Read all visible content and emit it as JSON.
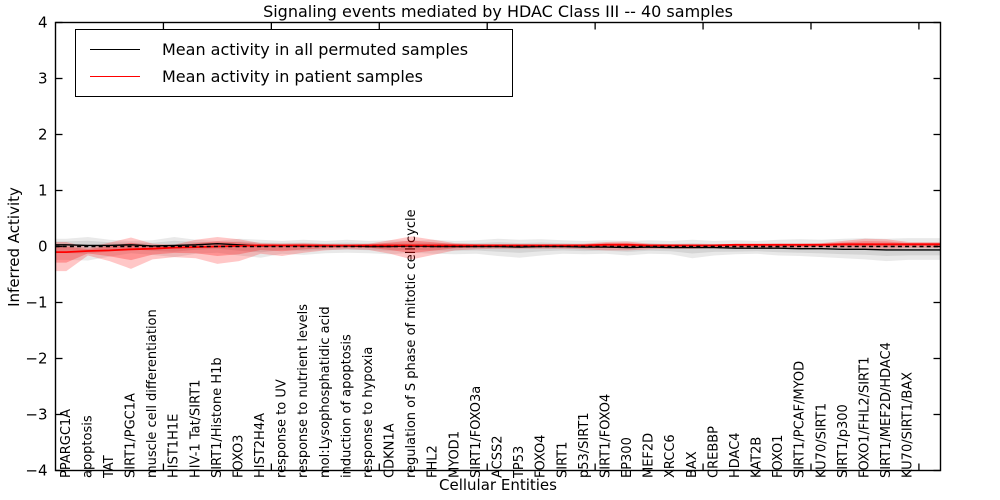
{
  "title": "Signaling events mediated by HDAC Class III -- 40 samples",
  "legend": {
    "entries": [
      {
        "label": "Mean activity in all permuted samples",
        "color": "#000000"
      },
      {
        "label": "Mean activity in patient samples",
        "color": "#ff0000"
      }
    ],
    "position": "upper left"
  },
  "colors": {
    "permuted_line": "#000000",
    "patient_line": "#ff0000",
    "permuted_band": "#000000",
    "patient_band": "#ff0000",
    "zero_line": "#000000",
    "frame": "#000000",
    "background": "#ffffff"
  },
  "chart_data": {
    "type": "line",
    "title": "Signaling events mediated by HDAC Class III -- 40 samples",
    "xlabel": "Cellular Entities",
    "ylabel": "Inferred Activity",
    "ylim": [
      -4,
      4
    ],
    "yticks": [
      -4,
      -3,
      -2,
      -1,
      0,
      1,
      2,
      3,
      4
    ],
    "xticks_every": 5,
    "grid": false,
    "legend_position": "upper left",
    "zero_line": {
      "y": 0,
      "style": "dashed",
      "color": "#000000"
    },
    "categories": [
      "PPARGC1A",
      "apoptosis",
      "TAT",
      "SIRT1/PGC1A",
      "muscle cell differentiation",
      "HIST1H1E",
      "HIV-1 Tat/SIRT1",
      "SIRT1/Histone H1b",
      "FOXO3",
      "HIST2H4A",
      "response to UV",
      "response to nutrient levels",
      "mol:Lysophosphatidic acid",
      "induction of apoptosis",
      "response to hypoxia",
      "CDKN1A",
      "regulation of S phase of mitotic cell cycle",
      "FHL2",
      "MYOD1",
      "SIRT1/FOXO3a",
      "ACSS2",
      "TP53",
      "FOXO4",
      "SIRT1",
      "p53/SIRT1",
      "SIRT1/FOXO4",
      "EP300",
      "MEF2D",
      "XRCC6",
      "BAX",
      "CREBBP",
      "HDAC4",
      "KAT2B",
      "FOXO1",
      "SIRT1/PCAF/MYOD",
      "KU70/SIRT1",
      "SIRT1/p300",
      "FOXO1/FHL2/SIRT1",
      "SIRT1/MEF2D/HDAC4",
      "KU70/SIRT1/BAX"
    ],
    "series": [
      {
        "name": "Mean activity in all permuted samples",
        "color": "#000000",
        "mean": [
          0.03,
          0.02,
          0.02,
          0.03,
          0.01,
          0.02,
          0.03,
          0.05,
          0.03,
          0.01,
          0.02,
          0.01,
          0.01,
          0.01,
          0.0,
          0.0,
          0.01,
          0.0,
          0.0,
          0.0,
          0.0,
          -0.01,
          0.0,
          0.0,
          -0.01,
          -0.01,
          -0.02,
          -0.01,
          -0.02,
          -0.02,
          -0.02,
          -0.03,
          -0.03,
          -0.03,
          -0.04,
          -0.04,
          -0.05,
          -0.05,
          -0.06,
          -0.06
        ],
        "upper": [
          0.14,
          0.17,
          0.12,
          0.1,
          0.11,
          0.17,
          0.12,
          0.1,
          0.14,
          0.12,
          0.1,
          0.12,
          0.1,
          0.12,
          0.1,
          0.11,
          0.1,
          0.12,
          0.1,
          0.11,
          0.14,
          0.12,
          0.13,
          0.11,
          0.1,
          0.11,
          0.1,
          0.11,
          0.1,
          0.12,
          0.1,
          0.11,
          0.1,
          0.12,
          0.13,
          0.12,
          0.14,
          0.15,
          0.14,
          0.15
        ],
        "lower": [
          -0.24,
          -0.25,
          -0.18,
          -0.12,
          -0.15,
          -0.19,
          -0.13,
          -0.11,
          -0.16,
          -0.2,
          -0.13,
          -0.15,
          -0.12,
          -0.11,
          -0.12,
          -0.14,
          -0.11,
          -0.13,
          -0.14,
          -0.13,
          -0.17,
          -0.2,
          -0.16,
          -0.13,
          -0.14,
          -0.13,
          -0.16,
          -0.13,
          -0.14,
          -0.21,
          -0.16,
          -0.14,
          -0.13,
          -0.16,
          -0.17,
          -0.19,
          -0.21,
          -0.23,
          -0.26,
          -0.24
        ]
      },
      {
        "name": "Mean activity in patient samples",
        "color": "#ff0000",
        "mean": [
          -0.1,
          -0.08,
          -0.07,
          -0.05,
          -0.04,
          -0.02,
          -0.01,
          0.0,
          0.01,
          0.02,
          0.02,
          0.02,
          0.02,
          0.02,
          0.02,
          0.02,
          0.02,
          0.02,
          0.02,
          0.02,
          0.02,
          0.02,
          0.02,
          0.02,
          0.02,
          0.03,
          0.03,
          0.02,
          0.02,
          0.02,
          0.02,
          0.03,
          0.03,
          0.03,
          0.03,
          0.03,
          0.04,
          0.04,
          0.04,
          0.04
        ],
        "upper": [
          0.08,
          -0.02,
          0.07,
          0.16,
          0.05,
          0.03,
          0.12,
          0.17,
          0.13,
          0.06,
          0.05,
          0.06,
          0.04,
          0.03,
          0.05,
          0.11,
          0.18,
          0.12,
          0.06,
          0.04,
          0.04,
          0.04,
          0.04,
          0.04,
          0.05,
          0.08,
          0.09,
          0.05,
          0.04,
          0.04,
          0.04,
          0.04,
          0.04,
          0.05,
          0.05,
          0.06,
          0.1,
          0.14,
          0.13,
          0.08
        ],
        "lower": [
          -0.44,
          -0.16,
          -0.26,
          -0.4,
          -0.23,
          -0.19,
          -0.21,
          -0.31,
          -0.26,
          -0.13,
          -0.17,
          -0.11,
          -0.07,
          -0.05,
          -0.06,
          -0.13,
          -0.23,
          -0.15,
          -0.07,
          -0.05,
          -0.04,
          -0.04,
          -0.04,
          -0.04,
          -0.05,
          -0.07,
          -0.07,
          -0.05,
          -0.04,
          -0.04,
          -0.03,
          -0.03,
          -0.03,
          -0.03,
          -0.03,
          -0.02,
          -0.03,
          -0.04,
          -0.05,
          -0.03
        ]
      }
    ]
  }
}
